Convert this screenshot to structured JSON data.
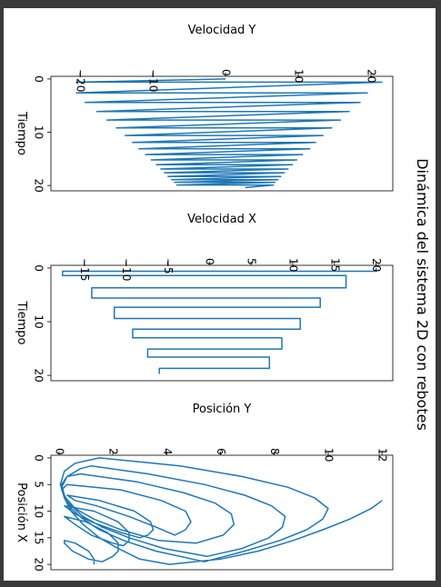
{
  "figure": {
    "suptitle": "Dinámica del sistema 2D con rebotes",
    "line_color": "#1f77b4"
  },
  "chart_data": [
    {
      "type": "line",
      "title": "",
      "xlabel": "Tiempo",
      "ylabel": "Velocidad Y",
      "xlim": [
        -0.5,
        21
      ],
      "ylim": [
        -24,
        23
      ],
      "xticks": [
        0,
        10,
        20
      ],
      "yticks": [
        -20,
        -10,
        0,
        10,
        20
      ],
      "series": [
        {
          "x": [
            0,
            0.6,
            0.6,
            2.6,
            2.6,
            4.4,
            4.4,
            6.1,
            6.1,
            7.7,
            7.7,
            9.2,
            9.2,
            10.6,
            10.6,
            11.9,
            11.9,
            13.1,
            13.1,
            14.2,
            14.2,
            15.2,
            15.2,
            16.1,
            16.1,
            16.9,
            16.9,
            17.6,
            17.6,
            18.3,
            18.3,
            18.9,
            18.9,
            19.4,
            19.4,
            19.9,
            19.9,
            20.4
          ],
          "y": [
            0,
            -20.5,
            21.5,
            -20.5,
            19.5,
            -19.3,
            18.5,
            -17.7,
            17.0,
            -16.3,
            15.8,
            -15.0,
            14.6,
            -13.8,
            13.4,
            -12.8,
            12.4,
            -11.9,
            11.6,
            -11.0,
            10.6,
            -10.2,
            9.8,
            -9.5,
            9.2,
            -8.9,
            8.6,
            -8.4,
            8.1,
            -7.9,
            7.6,
            -7.4,
            7.2,
            -7.0,
            6.8,
            -6.7,
            6.6,
            2.7
          ]
        }
      ]
    },
    {
      "type": "line",
      "title": "",
      "xlabel": "Tiempo",
      "ylabel": "Velocidad X",
      "xlim": [
        -0.5,
        21
      ],
      "ylim": [
        -19,
        22
      ],
      "xticks": [
        0,
        10,
        20
      ],
      "yticks": [
        -15,
        -10,
        -5,
        0,
        5,
        10,
        15,
        20
      ],
      "series": [
        {
          "x": [
            0,
            0.6,
            0.6,
            1.4,
            1.4,
            3.7,
            3.7,
            5.6,
            5.6,
            7.3,
            7.3,
            9.4,
            9.4,
            11.4,
            11.4,
            13.0,
            13.0,
            15.1,
            15.1,
            16.6,
            16.6,
            18.7,
            18.7,
            19.6,
            19.6
          ],
          "y": [
            20,
            20,
            -17.6,
            -17.6,
            16.4,
            16.4,
            -14.1,
            -14.1,
            13.3,
            13.3,
            -11.4,
            -11.4,
            10.9,
            10.9,
            -9.2,
            -9.2,
            8.7,
            8.7,
            -7.4,
            -7.4,
            7.2,
            7.2,
            -6.0,
            -6.0,
            -5.9
          ]
        }
      ]
    },
    {
      "type": "line",
      "title": "",
      "xlabel": "Posición X",
      "ylabel": "Posición Y",
      "xlim": [
        -0.5,
        21
      ],
      "ylim": [
        -0.3,
        12.4
      ],
      "xticks": [
        0,
        5,
        10,
        15,
        20
      ],
      "yticks": [
        0,
        2,
        4,
        6,
        8,
        10,
        12
      ],
      "series": [
        {
          "x": [
            8.0,
            9.5,
            11.5,
            13.5,
            15.5,
            17.5,
            19.0,
            20.0,
            19.0,
            17.0,
            15.0,
            12.5,
            10.0,
            7.5,
            5.0,
            2.5,
            1.0,
            0.0,
            1.5,
            3.5,
            5.5,
            7.5,
            9.5,
            11.5,
            13.5,
            15.5,
            17.5,
            19.5,
            17.5,
            15.5,
            13.5,
            11.5,
            9.5,
            7.5,
            5.5,
            3.5,
            2.0,
            1.5,
            3.0,
            5.0,
            7.0,
            9.0,
            11.0,
            13.0,
            15.0,
            17.0,
            18.5,
            17.0,
            15.0,
            13.0,
            11.0,
            9.0,
            7.0,
            5.0,
            3.5,
            3.0,
            4.5,
            6.5,
            8.5,
            10.5,
            12.5,
            14.5,
            16.0,
            15.5,
            13.5,
            11.5,
            9.5,
            7.5,
            6.0,
            5.0,
            6.0,
            8.0,
            10.0,
            12.0,
            13.5,
            14.5,
            13.0,
            11.0,
            9.0,
            8.0,
            7.0,
            8.0,
            10.0,
            12.0,
            13.5,
            14.5,
            15.0,
            14.0,
            12.0,
            10.5,
            9.0,
            10.0,
            12.0,
            14.0,
            15.5,
            16.5,
            16.0,
            14.5,
            12.5,
            11.0,
            12.0,
            14.0,
            16.0,
            17.5,
            18.5,
            19.5,
            19.0,
            17.5,
            16.0,
            15.5,
            16.0,
            17.5,
            19.0,
            20.0
          ],
          "y": [
            12.0,
            11.6,
            10.8,
            9.8,
            8.7,
            7.4,
            6.0,
            4.1,
            3.0,
            2.2,
            1.5,
            0.9,
            0.45,
            0.2,
            0.05,
            0.2,
            0.6,
            1.5,
            4.5,
            6.8,
            8.5,
            9.5,
            10.0,
            9.8,
            9.2,
            8.2,
            6.9,
            5.4,
            3.6,
            2.4,
            1.5,
            0.9,
            0.45,
            0.2,
            0.1,
            0.3,
            0.8,
            1.2,
            3.3,
            5.4,
            6.9,
            7.9,
            8.4,
            8.3,
            7.8,
            6.8,
            5.5,
            3.9,
            2.6,
            1.6,
            0.9,
            0.45,
            0.2,
            0.1,
            0.3,
            0.8,
            2.9,
            4.6,
            5.8,
            6.4,
            6.5,
            6.1,
            5.1,
            3.7,
            2.3,
            1.3,
            0.6,
            0.25,
            0.1,
            0.3,
            2.3,
            3.8,
            4.7,
            4.9,
            4.7,
            4.3,
            3.6,
            2.6,
            1.4,
            0.6,
            0.3,
            1.5,
            2.8,
            3.4,
            3.5,
            3.3,
            3.0,
            2.3,
            1.2,
            0.6,
            0.2,
            1.3,
            2.2,
            2.6,
            2.6,
            2.4,
            2.0,
            1.2,
            0.6,
            0.2,
            1.0,
            1.8,
            2.2,
            2.2,
            2.0,
            1.6,
            1.1,
            0.5,
            0.2,
            0.2,
            0.6,
            1.1,
            1.3,
            1.3
          ]
        }
      ]
    }
  ]
}
